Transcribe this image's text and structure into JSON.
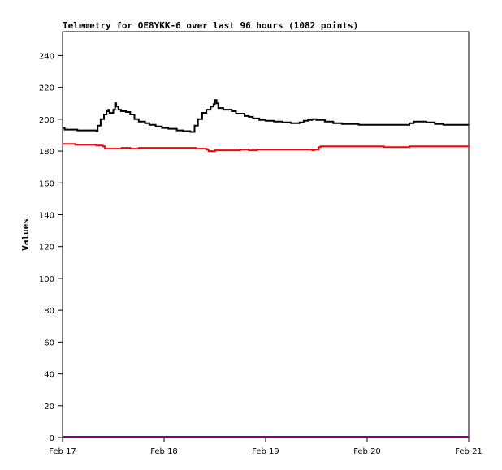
{
  "chart_data": {
    "type": "line",
    "title": "Telemetry for OE8YKK-6 over last 96 hours (1082 points)",
    "ylabel": "Values",
    "xlabel": "",
    "ylim": [
      0,
      255
    ],
    "xlim": [
      0,
      96
    ],
    "x_ticks": [
      {
        "x": 0,
        "label": "Feb 17"
      },
      {
        "x": 24,
        "label": "Feb 18"
      },
      {
        "x": 48,
        "label": "Feb 19"
      },
      {
        "x": 72,
        "label": "Feb 20"
      },
      {
        "x": 96,
        "label": "Feb 21"
      }
    ],
    "y_ticks": [
      0,
      20,
      40,
      60,
      80,
      100,
      120,
      140,
      160,
      180,
      200,
      220,
      240
    ],
    "grid": false,
    "series": [
      {
        "color": "#000000",
        "style": "step",
        "points": [
          [
            0,
            194.5
          ],
          [
            0.5,
            193.5
          ],
          [
            3.5,
            193
          ],
          [
            8,
            192.5
          ],
          [
            8.3,
            196
          ],
          [
            9,
            200
          ],
          [
            9.8,
            203
          ],
          [
            10.4,
            205
          ],
          [
            10.8,
            206
          ],
          [
            11.1,
            204
          ],
          [
            11.6,
            204
          ],
          [
            12,
            206
          ],
          [
            12.4,
            210
          ],
          [
            12.7,
            208
          ],
          [
            13.2,
            206
          ],
          [
            13.8,
            205
          ],
          [
            15,
            204.5
          ],
          [
            16,
            203
          ],
          [
            17,
            200
          ],
          [
            18,
            198.5
          ],
          [
            19.5,
            197.5
          ],
          [
            20.5,
            196.5
          ],
          [
            22,
            195.5
          ],
          [
            23.5,
            194.5
          ],
          [
            25,
            194
          ],
          [
            27,
            193
          ],
          [
            28.5,
            192.5
          ],
          [
            30.2,
            192
          ],
          [
            31.2,
            196
          ],
          [
            32,
            200
          ],
          [
            33,
            204
          ],
          [
            34,
            206
          ],
          [
            35,
            208
          ],
          [
            35.7,
            209.5
          ],
          [
            36,
            212
          ],
          [
            36.4,
            210
          ],
          [
            36.8,
            207
          ],
          [
            38,
            206
          ],
          [
            40,
            205
          ],
          [
            41,
            203.5
          ],
          [
            43,
            202
          ],
          [
            44,
            201.5
          ],
          [
            45,
            200.5
          ],
          [
            46.5,
            199.5
          ],
          [
            48,
            199
          ],
          [
            50,
            198.5
          ],
          [
            52,
            198
          ],
          [
            54,
            197.5
          ],
          [
            56,
            198
          ],
          [
            57,
            199
          ],
          [
            58,
            199.5
          ],
          [
            59,
            200
          ],
          [
            60,
            199.5
          ],
          [
            62,
            198.5
          ],
          [
            64,
            197.5
          ],
          [
            66,
            197
          ],
          [
            68,
            197
          ],
          [
            70,
            196.5
          ],
          [
            72,
            196.5
          ],
          [
            75,
            196.5
          ],
          [
            78,
            196.5
          ],
          [
            81,
            196.5
          ],
          [
            82,
            197.5
          ],
          [
            83,
            198.5
          ],
          [
            84.5,
            198.5
          ],
          [
            86,
            198
          ],
          [
            88,
            197
          ],
          [
            90,
            196.5
          ],
          [
            93,
            196.5
          ],
          [
            96,
            196.5
          ]
        ]
      },
      {
        "color": "#ff0000",
        "style": "step",
        "points": [
          [
            0,
            184.5
          ],
          [
            3,
            184
          ],
          [
            7.5,
            184
          ],
          [
            8,
            183.5
          ],
          [
            9.5,
            183
          ],
          [
            10,
            181.5
          ],
          [
            13,
            181.5
          ],
          [
            14,
            182
          ],
          [
            16,
            181.5
          ],
          [
            18,
            182
          ],
          [
            20,
            182
          ],
          [
            24,
            182
          ],
          [
            28,
            182
          ],
          [
            30.5,
            182
          ],
          [
            31.5,
            181.5
          ],
          [
            34,
            181
          ],
          [
            34.5,
            180
          ],
          [
            36,
            180.5
          ],
          [
            38,
            180.5
          ],
          [
            40,
            180.5
          ],
          [
            42,
            181
          ],
          [
            44,
            180.5
          ],
          [
            46,
            181
          ],
          [
            48,
            181
          ],
          [
            52,
            181
          ],
          [
            55,
            181
          ],
          [
            58,
            181
          ],
          [
            59,
            180.5
          ],
          [
            59.5,
            181
          ],
          [
            60.5,
            182.5
          ],
          [
            61,
            183
          ],
          [
            64,
            183
          ],
          [
            68,
            183
          ],
          [
            72,
            183
          ],
          [
            76,
            182.5
          ],
          [
            78,
            182.5
          ],
          [
            80,
            182.5
          ],
          [
            82,
            183
          ],
          [
            86,
            183
          ],
          [
            90,
            183
          ],
          [
            94,
            183
          ],
          [
            96,
            183
          ]
        ]
      },
      {
        "color": "#880088",
        "style": "step",
        "points": [
          [
            0,
            0.5
          ],
          [
            96,
            0.5
          ]
        ]
      }
    ]
  }
}
